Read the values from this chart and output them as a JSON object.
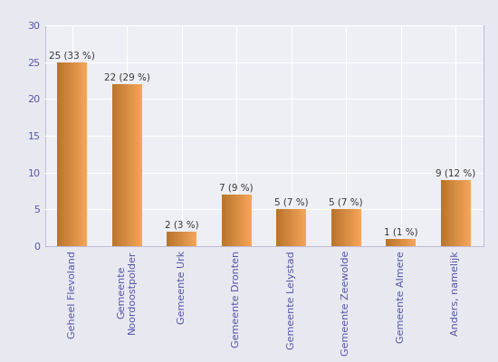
{
  "categories": [
    "Geheel Flevoland",
    "Gemeente\nNoordoostpolder",
    "Gemeente Urk",
    "Gemeente Dronten",
    "Gemeente Lelystad",
    "Gemeente Zeewolde",
    "Gemeente Almere",
    "Anders, namelijk"
  ],
  "values": [
    25,
    22,
    2,
    7,
    5,
    5,
    1,
    9
  ],
  "labels": [
    "25 (33 %)",
    "22 (29 %)",
    "2 (3 %)",
    "7 (9 %)",
    "5 (7 %)",
    "5 (7 %)",
    "1 (1 %)",
    "9 (12 %)"
  ],
  "bar_color_left": "#B8742A",
  "bar_color_right": "#F5A55A",
  "figure_bg": "#E8E8F0",
  "axes_bg": "#EEEEF5",
  "grid_color": "#FFFFFF",
  "tick_color": "#5555AA",
  "label_color": "#333333",
  "ylim": [
    0,
    30
  ],
  "yticks": [
    0,
    5,
    10,
    15,
    20,
    25,
    30
  ],
  "label_fontsize": 7.5,
  "tick_fontsize": 8,
  "bar_width": 0.55
}
